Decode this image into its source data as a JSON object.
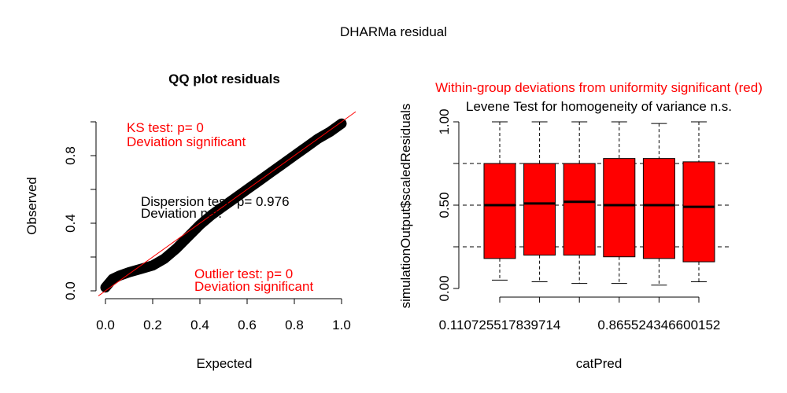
{
  "page": {
    "title": "DHARMa residual"
  },
  "chart_data": [
    {
      "type": "scatter",
      "title": "QQ plot residuals",
      "xlabel": "Expected",
      "ylabel": "Observed",
      "xlim": [
        0,
        1
      ],
      "ylim": [
        0,
        1
      ],
      "xticks": [
        "0.0",
        "0.2",
        "0.4",
        "0.6",
        "0.8",
        "1.0"
      ],
      "yticks": [
        "0.0",
        "0.4",
        "0.8"
      ],
      "series": [
        {
          "name": "residual quantiles",
          "color": "#000000",
          "x": [
            0.0,
            0.03,
            0.06,
            0.1,
            0.15,
            0.2,
            0.25,
            0.3,
            0.35,
            0.4,
            0.45,
            0.5,
            0.55,
            0.6,
            0.65,
            0.7,
            0.75,
            0.8,
            0.85,
            0.9,
            0.95,
            1.0
          ],
          "y": [
            0.02,
            0.07,
            0.09,
            0.11,
            0.13,
            0.15,
            0.19,
            0.25,
            0.32,
            0.39,
            0.45,
            0.5,
            0.55,
            0.6,
            0.65,
            0.7,
            0.75,
            0.8,
            0.85,
            0.9,
            0.94,
            0.99
          ]
        },
        {
          "name": "1:1 line",
          "color": "#ff0000",
          "x": [
            0,
            1
          ],
          "y": [
            0,
            1
          ]
        }
      ],
      "annotations": {
        "ks": {
          "line1": "KS test: p= 0",
          "line2": "Deviation  significant",
          "color": "#ff0000"
        },
        "dispersion": {
          "line1": "Dispersion test: p= 0.976",
          "line2": "Deviation n.s.",
          "color": "#000000"
        },
        "outlier": {
          "line1": "Outlier test: p= 0",
          "line2": "Deviation  significant",
          "color": "#ff0000"
        }
      }
    },
    {
      "type": "box",
      "title": "Within-group deviations from uniformity significant (red)",
      "title_color": "#ff0000",
      "subtitle": "Levene Test for homogeneity of variance n.s.",
      "xlabel": "catPred",
      "ylabel": "simulationOutput$scaledResiduals",
      "ylim": [
        0,
        1
      ],
      "yticks": [
        "0.00",
        "0.50",
        "1.00"
      ],
      "reference_lines": [
        0.25,
        0.5,
        0.75
      ],
      "category_labels": [
        "0.110725517839714",
        "0.865524346600152"
      ],
      "boxes": [
        {
          "min": 0.05,
          "q1": 0.18,
          "median": 0.5,
          "q3": 0.75,
          "max": 1.0,
          "color": "#ff0000"
        },
        {
          "min": 0.04,
          "q1": 0.2,
          "median": 0.51,
          "q3": 0.75,
          "max": 1.0,
          "color": "#ff0000"
        },
        {
          "min": 0.03,
          "q1": 0.2,
          "median": 0.52,
          "q3": 0.75,
          "max": 1.0,
          "color": "#ff0000"
        },
        {
          "min": 0.03,
          "q1": 0.19,
          "median": 0.5,
          "q3": 0.78,
          "max": 1.0,
          "color": "#ff0000"
        },
        {
          "min": 0.02,
          "q1": 0.18,
          "median": 0.5,
          "q3": 0.78,
          "max": 0.99,
          "color": "#ff0000"
        },
        {
          "min": 0.04,
          "q1": 0.16,
          "median": 0.49,
          "q3": 0.76,
          "max": 1.0,
          "color": "#ff0000"
        }
      ]
    }
  ]
}
